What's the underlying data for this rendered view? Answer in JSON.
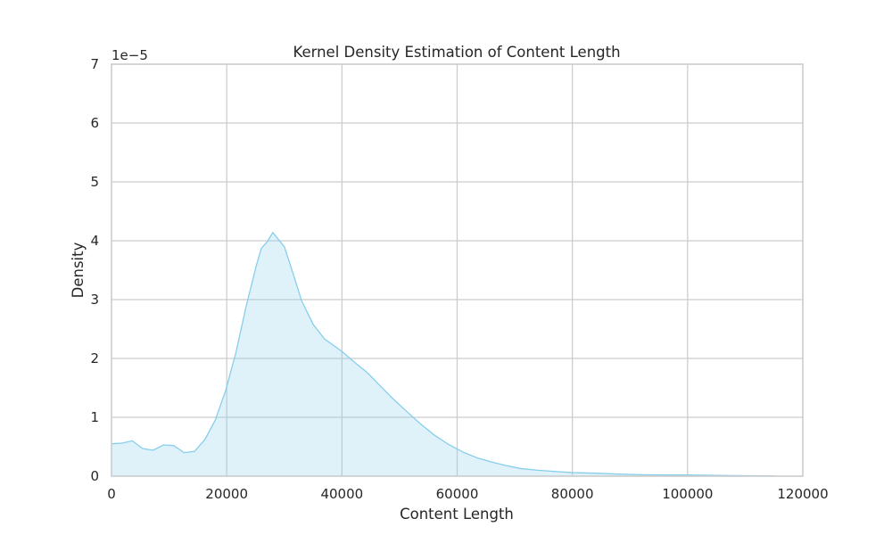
{
  "chart_data": {
    "type": "area",
    "title": "Kernel Density Estimation of Content Length",
    "xlabel": "Content Length",
    "ylabel": "Density",
    "y_offset_label": "1e−5",
    "xlim": [
      0,
      120000
    ],
    "ylim": [
      0,
      7
    ],
    "x_ticks": [
      0,
      20000,
      40000,
      60000,
      80000,
      100000,
      120000
    ],
    "x_tick_labels": [
      "0",
      "20000",
      "40000",
      "60000",
      "80000",
      "100000",
      "120000"
    ],
    "y_ticks": [
      0,
      1,
      2,
      3,
      4,
      5,
      6,
      7
    ],
    "y_tick_labels": [
      "0",
      "1",
      "2",
      "3",
      "4",
      "5",
      "6",
      "7"
    ],
    "grid": true,
    "colors": {
      "line": "#87ceeb",
      "fill": "#87ceeb",
      "fill_opacity": 0.27,
      "grid": "#cccccc",
      "text": "#262626"
    },
    "series": [
      {
        "x": [
          0,
          1800,
          3600,
          5400,
          7200,
          9000,
          10800,
          12600,
          14400,
          16200,
          18000,
          19800,
          21600,
          23400,
          25200,
          26000,
          27000,
          28000,
          29000,
          30000,
          31500,
          33000,
          35000,
          37000,
          40000,
          42000,
          44500,
          46500,
          48500,
          51000,
          53500,
          56000,
          58500,
          61000,
          63500,
          66000,
          68500,
          71000,
          74000,
          77000,
          80000,
          84000,
          88000,
          92000,
          96000,
          100000,
          104000,
          108000,
          112000,
          115000
        ],
        "values": [
          0.55,
          0.56,
          0.6,
          0.47,
          0.44,
          0.53,
          0.52,
          0.4,
          0.42,
          0.62,
          0.95,
          1.45,
          2.1,
          2.9,
          3.6,
          3.87,
          3.98,
          4.14,
          4.02,
          3.9,
          3.45,
          2.98,
          2.58,
          2.33,
          2.12,
          1.95,
          1.75,
          1.55,
          1.35,
          1.12,
          0.9,
          0.7,
          0.54,
          0.41,
          0.31,
          0.24,
          0.18,
          0.13,
          0.1,
          0.08,
          0.06,
          0.05,
          0.035,
          0.025,
          0.02,
          0.02,
          0.015,
          0.01,
          0.005,
          0.003
        ]
      }
    ]
  }
}
